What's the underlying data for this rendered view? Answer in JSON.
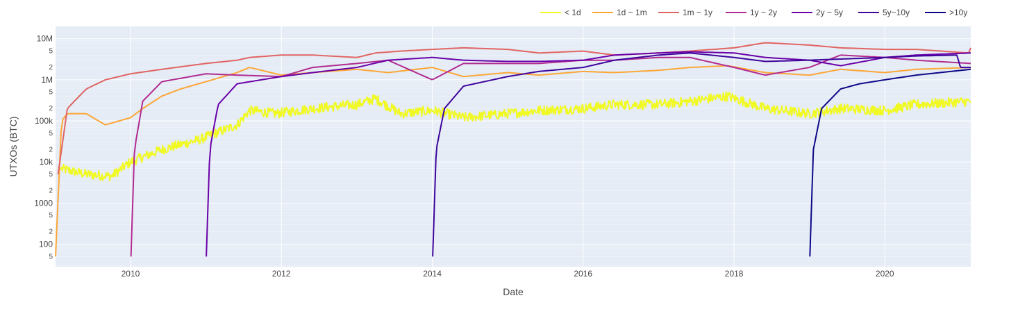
{
  "chart_data": {
    "type": "line",
    "xlabel": "Date",
    "ylabel": "UTXOs (BTC)",
    "yscale": "log",
    "xlim": [
      "2009-01-03",
      "2021-02-20"
    ],
    "ylim_log10": [
      1.45,
      7.3
    ],
    "legend_position": "top-right",
    "grid": true,
    "x_ticks": [
      "2010",
      "2012",
      "2014",
      "2016",
      "2018",
      "2020"
    ],
    "y_ticks": [
      {
        "value": 100,
        "label": "100"
      },
      {
        "value": 1000,
        "label": "1000"
      },
      {
        "value": 10000,
        "label": "10k"
      },
      {
        "value": 100000,
        "label": "100k"
      },
      {
        "value": 1000000,
        "label": "1M"
      },
      {
        "value": 10000000,
        "label": "10M"
      }
    ],
    "y_minor_tick_labels": [
      "2",
      "5"
    ],
    "series": [
      {
        "name": "< 1d",
        "color": "#f0f921",
        "noise": 0.12,
        "x": [
          "2009-01-20",
          "2009-06-01",
          "2009-10-01",
          "2010-01-01",
          "2010-06-01",
          "2010-12-01",
          "2011-06-01",
          "2011-08-01",
          "2011-12-01",
          "2012-06-01",
          "2013-01-01",
          "2013-04-01",
          "2013-08-01",
          "2014-01-01",
          "2014-06-01",
          "2015-01-01",
          "2015-06-01",
          "2016-01-01",
          "2016-06-01",
          "2017-01-01",
          "2017-06-01",
          "2017-12-01",
          "2018-06-01",
          "2019-01-01",
          "2019-06-01",
          "2020-01-01",
          "2020-06-01",
          "2021-02-20"
        ],
        "y": [
          7000,
          5000,
          4500,
          10000,
          20000,
          35000,
          80000,
          180000,
          150000,
          200000,
          250000,
          350000,
          150000,
          180000,
          120000,
          150000,
          180000,
          200000,
          250000,
          250000,
          300000,
          400000,
          200000,
          150000,
          200000,
          180000,
          250000,
          300000
        ]
      },
      {
        "name": "1d ~ 1m",
        "color": "#fca636",
        "x": [
          "2009-01-03",
          "2009-02-01",
          "2009-03-01",
          "2009-06-01",
          "2009-09-01",
          "2010-01-01",
          "2010-03-01",
          "2010-06-01",
          "2010-09-01",
          "2011-01-01",
          "2011-06-01",
          "2011-08-01",
          "2012-01-01",
          "2012-06-01",
          "2013-01-01",
          "2013-06-01",
          "2014-01-01",
          "2014-06-01",
          "2015-01-01",
          "2015-06-01",
          "2016-01-01",
          "2016-06-01",
          "2017-01-01",
          "2017-06-01",
          "2017-12-01",
          "2018-06-01",
          "2019-01-01",
          "2019-06-01",
          "2020-01-01",
          "2020-06-01",
          "2021-02-20"
        ],
        "y": [
          50,
          100000,
          150000,
          150000,
          80000,
          120000,
          200000,
          400000,
          600000,
          900000,
          1500000,
          2000000,
          1300000,
          1500000,
          1800000,
          1500000,
          2000000,
          1200000,
          1500000,
          1300000,
          1600000,
          1500000,
          1700000,
          2000000,
          2200000,
          1500000,
          1300000,
          1800000,
          1500000,
          1800000,
          2000000
        ]
      },
      {
        "name": "1m ~ 1y",
        "color": "#e16462",
        "x": [
          "2009-01-15",
          "2009-03-01",
          "2009-06-01",
          "2009-09-01",
          "2010-01-01",
          "2010-06-01",
          "2011-01-01",
          "2011-06-01",
          "2011-08-01",
          "2012-01-01",
          "2012-06-01",
          "2013-01-01",
          "2013-04-01",
          "2013-08-01",
          "2014-01-01",
          "2014-06-01",
          "2015-01-01",
          "2015-06-01",
          "2016-01-01",
          "2016-06-01",
          "2017-01-01",
          "2017-06-01",
          "2018-01-01",
          "2018-06-01",
          "2019-01-01",
          "2019-06-01",
          "2020-01-01",
          "2020-06-01",
          "2021-02-10",
          "2021-02-20"
        ],
        "y": [
          5000,
          200000,
          600000,
          1000000,
          1400000,
          1800000,
          2500000,
          3000000,
          3500000,
          4000000,
          4000000,
          3500000,
          4500000,
          5000000,
          5500000,
          6000000,
          5500000,
          4500000,
          5000000,
          4000000,
          4500000,
          5000000,
          6000000,
          8000000,
          7000000,
          6000000,
          5500000,
          5500000,
          4500000,
          6000000
        ]
      },
      {
        "name": "1y ~ 2y",
        "color": "#b12a90",
        "x": [
          "2010-01-03",
          "2010-01-20",
          "2010-03-01",
          "2010-06-01",
          "2011-01-01",
          "2011-06-01",
          "2012-01-01",
          "2012-06-01",
          "2013-01-01",
          "2013-06-01",
          "2014-01-01",
          "2014-06-01",
          "2015-01-01",
          "2015-06-01",
          "2016-01-01",
          "2016-06-01",
          "2017-01-01",
          "2017-06-01",
          "2018-01-01",
          "2018-06-01",
          "2019-01-01",
          "2019-06-01",
          "2020-01-01",
          "2020-06-01",
          "2021-02-20"
        ],
        "y": [
          50,
          20000,
          300000,
          900000,
          1400000,
          1300000,
          1200000,
          2000000,
          2500000,
          3000000,
          1000000,
          2500000,
          2500000,
          2500000,
          3000000,
          3000000,
          3500000,
          3500000,
          2000000,
          1300000,
          2000000,
          4000000,
          3500000,
          3000000,
          2500000
        ]
      },
      {
        "name": "2y ~ 5y",
        "color": "#6a00a8",
        "x": [
          "2011-01-03",
          "2011-01-20",
          "2011-03-01",
          "2011-06-01",
          "2012-01-01",
          "2012-06-01",
          "2013-01-01",
          "2013-06-01",
          "2014-01-01",
          "2014-06-01",
          "2015-01-01",
          "2015-06-01",
          "2016-01-01",
          "2016-06-01",
          "2017-01-01",
          "2017-06-01",
          "2018-01-01",
          "2018-06-01",
          "2019-01-01",
          "2019-06-01",
          "2020-01-01",
          "2020-06-01",
          "2021-02-20"
        ],
        "y": [
          50,
          20000,
          250000,
          800000,
          1200000,
          1500000,
          2000000,
          3000000,
          3500000,
          3000000,
          2800000,
          2800000,
          3000000,
          4000000,
          4500000,
          4800000,
          4500000,
          3500000,
          3000000,
          2200000,
          3500000,
          4000000,
          4500000
        ]
      },
      {
        "name": "5y~10y",
        "color": "#3e049c",
        "x": [
          "2014-01-03",
          "2014-01-20",
          "2014-03-01",
          "2014-06-01",
          "2015-01-01",
          "2015-06-01",
          "2016-01-01",
          "2016-06-01",
          "2017-01-01",
          "2017-06-01",
          "2018-01-01",
          "2018-06-01",
          "2019-01-01",
          "2019-06-01",
          "2020-01-01",
          "2020-06-01",
          "2020-12-15",
          "2021-01-01",
          "2021-02-20"
        ],
        "y": [
          50,
          20000,
          200000,
          700000,
          1200000,
          1600000,
          2000000,
          3000000,
          4000000,
          4500000,
          3500000,
          2800000,
          3000000,
          3200000,
          3500000,
          3800000,
          4000000,
          2000000,
          2000000
        ]
      },
      {
        "name": ">10y",
        "color": "#0d0887",
        "x": [
          "2019-01-03",
          "2019-01-20",
          "2019-03-01",
          "2019-06-01",
          "2019-09-01",
          "2020-01-01",
          "2020-06-01",
          "2021-02-20"
        ],
        "y": [
          50,
          20000,
          200000,
          600000,
          800000,
          1000000,
          1300000,
          1800000
        ]
      }
    ]
  }
}
